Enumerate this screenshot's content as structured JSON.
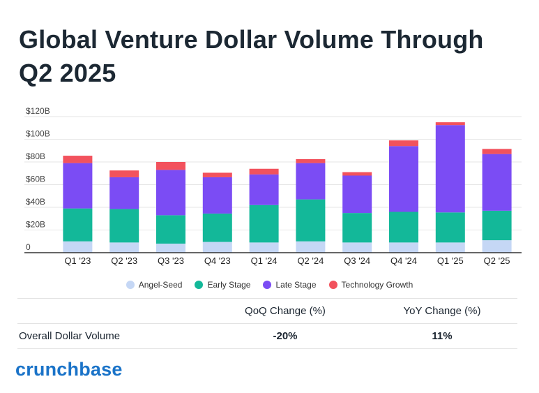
{
  "title": "Global Venture Dollar Volume Through Q2 2025",
  "chart_data": {
    "type": "bar",
    "stacked": true,
    "title": "Global Venture Dollar Volume Through Q2 2025",
    "categories": [
      "Q1 '23",
      "Q2 '23",
      "Q3 '23",
      "Q4 '23",
      "Q1 '24",
      "Q2 '24",
      "Q3 '24",
      "Q4 '24",
      "Q1 '25",
      "Q2 '25"
    ],
    "series": [
      {
        "name": "Angel-Seed",
        "color": "#c5d7f5",
        "values": [
          10,
          9,
          8,
          9.5,
          9,
          10,
          9,
          9,
          9,
          11
        ]
      },
      {
        "name": "Early Stage",
        "color": "#13b899",
        "values": [
          29,
          29.5,
          25,
          25,
          33,
          37,
          26,
          27,
          26.5,
          26
        ]
      },
      {
        "name": "Late Stage",
        "color": "#7b4cf4",
        "values": [
          40,
          28,
          40,
          32,
          27,
          32,
          33,
          58,
          77,
          50
        ]
      },
      {
        "name": "Technology Growth",
        "color": "#f2525d",
        "values": [
          6.5,
          6,
          7,
          4,
          5,
          3.5,
          3,
          5,
          2.5,
          4.5
        ]
      }
    ],
    "yticks": [
      "$120B",
      "$100B",
      "$80B",
      "$60B",
      "$40B",
      "$20B",
      "0"
    ],
    "ylim": [
      0,
      120
    ],
    "grid": true,
    "legend": "bottom"
  },
  "legend": {
    "items": [
      {
        "label": "Angel-Seed",
        "color": "#c5d7f5"
      },
      {
        "label": "Early Stage",
        "color": "#13b899"
      },
      {
        "label": "Late Stage",
        "color": "#7b4cf4"
      },
      {
        "label": "Technology Growth",
        "color": "#f2525d"
      }
    ]
  },
  "table": {
    "headers": [
      "",
      "QoQ Change (%)",
      "YoY Change (%)"
    ],
    "row": {
      "label": "Overall Dollar Volume",
      "qoq": "-20%",
      "yoy": "11%"
    }
  },
  "logo": "crunchbase"
}
